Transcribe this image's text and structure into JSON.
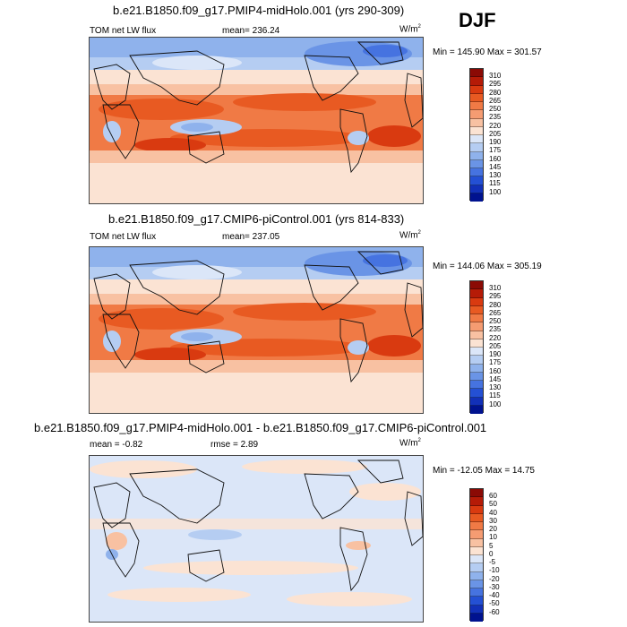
{
  "season": "DJF",
  "panels": [
    {
      "id": "midholo",
      "title": "b.e21.B1850.f09_g17.PMIP4-midHolo.001 (yrs 290-309)",
      "left_label": "TOM net LW flux",
      "center_label": "mean= 236.24",
      "units": "W/m",
      "units_sup": "2",
      "minmax": "Min = 145.90 Max = 301.57",
      "levels": [
        "310",
        "295",
        "280",
        "265",
        "250",
        "235",
        "220",
        "205",
        "190",
        "175",
        "160",
        "145",
        "130",
        "115",
        "100"
      ]
    },
    {
      "id": "picontrol",
      "title": "b.e21.B1850.f09_g17.CMIP6-piControl.001 (yrs 814-833)",
      "left_label": "TOM net LW flux",
      "center_label": "mean= 237.05",
      "units": "W/m",
      "units_sup": "2",
      "minmax": "Min = 144.06 Max = 305.19",
      "levels": [
        "310",
        "295",
        "280",
        "265",
        "250",
        "235",
        "220",
        "205",
        "190",
        "175",
        "160",
        "145",
        "130",
        "115",
        "100"
      ]
    },
    {
      "id": "difference",
      "title": "b.e21.B1850.f09_g17.PMIP4-midHolo.001 - b.e21.B1850.f09_g17.CMIP6-piControl.001",
      "left_label": "mean =  -0.82",
      "center_label": "rmse =   2.89",
      "units": "W/m",
      "units_sup": "2",
      "minmax": "Min = -12.05 Max =  14.75",
      "levels": [
        "60",
        "50",
        "40",
        "30",
        "20",
        "10",
        "5",
        "0",
        "-5",
        "-10",
        "-20",
        "-30",
        "-40",
        "-50",
        "-60"
      ]
    }
  ],
  "colors": {
    "abs_scale": [
      "#8b0a05",
      "#b51b07",
      "#d93a10",
      "#e85a22",
      "#f07a45",
      "#f59c72",
      "#f8c1a2",
      "#fbe3d3",
      "#dbe6f8",
      "#b5cdf2",
      "#8fb2ec",
      "#6a94e6",
      "#4673e0",
      "#2450d4",
      "#1230b8",
      "#00128f"
    ],
    "diff_scale": [
      "#8b0a05",
      "#b51b07",
      "#d93a10",
      "#e85a22",
      "#f07a45",
      "#f59c72",
      "#f8c1a2",
      "#fbe3d3",
      "#dbe6f8",
      "#b5cdf2",
      "#8fb2ec",
      "#6a94e6",
      "#4673e0",
      "#2450d4",
      "#1230b8",
      "#00128f"
    ]
  }
}
